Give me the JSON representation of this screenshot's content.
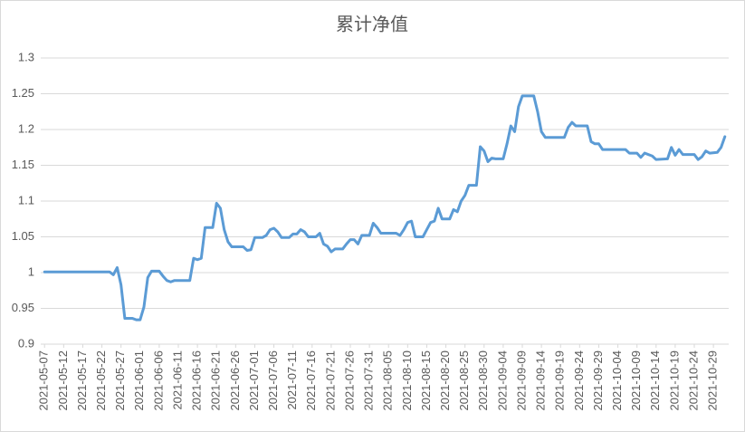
{
  "chart_data": {
    "type": "line",
    "title": "累计净值",
    "x": [
      "2021-05-07",
      "2021-05-24",
      "2021-05-25",
      "2021-05-26",
      "2021-05-27",
      "2021-05-28",
      "2021-05-30",
      "2021-05-31",
      "2021-06-01",
      "2021-06-02",
      "2021-06-03",
      "2021-06-04",
      "2021-06-06",
      "2021-06-07",
      "2021-06-08",
      "2021-06-09",
      "2021-06-10",
      "2021-06-14",
      "2021-06-15",
      "2021-06-16",
      "2021-06-17",
      "2021-06-18",
      "2021-06-20",
      "2021-06-21",
      "2021-06-22",
      "2021-06-23",
      "2021-06-24",
      "2021-06-25",
      "2021-06-28",
      "2021-06-29",
      "2021-06-30",
      "2021-07-01",
      "2021-07-03",
      "2021-07-04",
      "2021-07-05",
      "2021-07-06",
      "2021-07-07",
      "2021-07-08",
      "2021-07-10",
      "2021-07-11",
      "2021-07-12",
      "2021-07-13",
      "2021-07-14",
      "2021-07-15",
      "2021-07-17",
      "2021-07-18",
      "2021-07-19",
      "2021-07-20",
      "2021-07-21",
      "2021-07-22",
      "2021-07-24",
      "2021-07-25",
      "2021-07-26",
      "2021-07-27",
      "2021-07-28",
      "2021-07-29",
      "2021-07-31",
      "2021-08-01",
      "2021-08-02",
      "2021-08-03",
      "2021-08-04",
      "2021-08-07",
      "2021-08-08",
      "2021-08-09",
      "2021-08-10",
      "2021-08-11",
      "2021-08-12",
      "2021-08-14",
      "2021-08-15",
      "2021-08-16",
      "2021-08-17",
      "2021-08-18",
      "2021-08-19",
      "2021-08-21",
      "2021-08-22",
      "2021-08-23",
      "2021-08-24",
      "2021-08-25",
      "2021-08-26",
      "2021-08-28",
      "2021-08-29",
      "2021-08-30",
      "2021-08-31",
      "2021-09-01",
      "2021-09-02",
      "2021-09-04",
      "2021-09-05",
      "2021-09-06",
      "2021-09-07",
      "2021-09-08",
      "2021-09-09",
      "2021-09-12",
      "2021-09-13",
      "2021-09-14",
      "2021-09-15",
      "2021-09-20",
      "2021-09-21",
      "2021-09-22",
      "2021-09-23",
      "2021-09-26",
      "2021-09-27",
      "2021-09-28",
      "2021-09-29",
      "2021-09-30",
      "2021-10-06",
      "2021-10-07",
      "2021-10-09",
      "2021-10-10",
      "2021-10-11",
      "2021-10-13",
      "2021-10-14",
      "2021-10-17",
      "2021-10-18",
      "2021-10-19",
      "2021-10-20",
      "2021-10-21",
      "2021-10-24",
      "2021-10-25",
      "2021-10-26",
      "2021-10-27",
      "2021-10-28",
      "2021-10-30",
      "2021-10-31",
      "2021-11-01"
    ],
    "series": [
      {
        "color": "#5b9bd5",
        "values": [
          1.001,
          1.001,
          0.997,
          1.007,
          0.983,
          0.936,
          0.936,
          0.934,
          0.934,
          0.952,
          0.993,
          1.002,
          1.002,
          0.995,
          0.989,
          0.987,
          0.989,
          0.989,
          1.02,
          1.018,
          1.02,
          1.063,
          1.063,
          1.097,
          1.09,
          1.06,
          1.043,
          1.036,
          1.036,
          1.031,
          1.032,
          1.049,
          1.049,
          1.052,
          1.06,
          1.062,
          1.057,
          1.049,
          1.049,
          1.054,
          1.054,
          1.06,
          1.057,
          1.05,
          1.05,
          1.055,
          1.04,
          1.037,
          1.029,
          1.033,
          1.033,
          1.04,
          1.046,
          1.046,
          1.04,
          1.052,
          1.052,
          1.069,
          1.063,
          1.055,
          1.055,
          1.055,
          1.052,
          1.06,
          1.07,
          1.072,
          1.05,
          1.05,
          1.06,
          1.07,
          1.072,
          1.09,
          1.075,
          1.075,
          1.088,
          1.085,
          1.1,
          1.108,
          1.122,
          1.122,
          1.176,
          1.17,
          1.155,
          1.16,
          1.159,
          1.159,
          1.18,
          1.205,
          1.197,
          1.232,
          1.247,
          1.247,
          1.225,
          1.197,
          1.189,
          1.189,
          1.203,
          1.21,
          1.205,
          1.205,
          1.183,
          1.18,
          1.18,
          1.172,
          1.172,
          1.167,
          1.167,
          1.161,
          1.167,
          1.163,
          1.158,
          1.159,
          1.175,
          1.164,
          1.172,
          1.165,
          1.165,
          1.158,
          1.162,
          1.17,
          1.167,
          1.168,
          1.175,
          1.19
        ]
      }
    ],
    "xlim": [
      "2021-05-06",
      "2021-11-02"
    ],
    "xticks": [
      "2021-05-07",
      "2021-05-12",
      "2021-05-17",
      "2021-05-22",
      "2021-05-27",
      "2021-06-01",
      "2021-06-06",
      "2021-06-11",
      "2021-06-16",
      "2021-06-21",
      "2021-06-26",
      "2021-07-01",
      "2021-07-06",
      "2021-07-11",
      "2021-07-16",
      "2021-07-21",
      "2021-07-26",
      "2021-07-31",
      "2021-08-05",
      "2021-08-10",
      "2021-08-15",
      "2021-08-20",
      "2021-08-25",
      "2021-08-30",
      "2021-09-04",
      "2021-09-09",
      "2021-09-14",
      "2021-09-19",
      "2021-09-24",
      "2021-09-29",
      "2021-10-04",
      "2021-10-09",
      "2021-10-14",
      "2021-10-19",
      "2021-10-24",
      "2021-10-29"
    ],
    "ylim": [
      0.9,
      1.3
    ],
    "yticks": [
      0.9,
      0.95,
      1,
      1.05,
      1.1,
      1.15,
      1.2,
      1.25,
      1.3
    ],
    "grid": true
  }
}
